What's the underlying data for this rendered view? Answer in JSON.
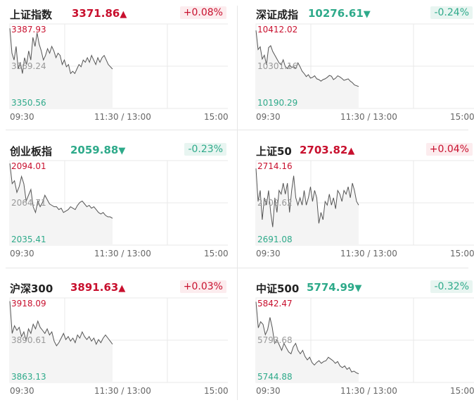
{
  "colors": {
    "up": "#c8102e",
    "down": "#2eaa8a",
    "line": "#555555",
    "grid": "#e8e8e8",
    "fill": "#f4f4f4"
  },
  "chart_data": [
    {
      "type": "line",
      "name": "上证指数",
      "price": "3371.86",
      "arrow": "▲",
      "change": "+0.08%",
      "dir": "up",
      "y_top": "3387.93",
      "y_mid": "3369.24",
      "y_bot": "3350.56",
      "ylim": [
        3350.56,
        3387.93
      ],
      "x_ticks": [
        "09:30",
        "11:30 / 13:00",
        "15:00"
      ],
      "values": [
        3386,
        3375,
        3372,
        3378,
        3368,
        3371,
        3366,
        3373,
        3370,
        3376,
        3372,
        3382,
        3378,
        3384,
        3379,
        3376,
        3372,
        3374,
        3377,
        3375,
        3378,
        3376,
        3373,
        3375,
        3374,
        3370,
        3372,
        3369,
        3370,
        3366,
        3367,
        3366,
        3368,
        3370,
        3369,
        3372,
        3371,
        3373,
        3371,
        3374,
        3372,
        3370,
        3373,
        3371,
        3373,
        3374,
        3372,
        3370,
        3369,
        3368
      ]
    },
    {
      "type": "line",
      "name": "深证成指",
      "price": "10276.61",
      "arrow": "▼",
      "change": "-0.24%",
      "dir": "down",
      "y_top": "10412.02",
      "y_mid": "10301.16",
      "y_bot": "10190.29",
      "ylim": [
        10190.29,
        10412.02
      ],
      "x_ticks": [
        "09:30",
        "11:30 / 13:00",
        "15:00"
      ],
      "values": [
        10395,
        10345,
        10352,
        10320,
        10330,
        10305,
        10350,
        10355,
        10340,
        10330,
        10320,
        10310,
        10305,
        10318,
        10300,
        10295,
        10305,
        10298,
        10300,
        10295,
        10310,
        10300,
        10288,
        10282,
        10274,
        10279,
        10270,
        10272,
        10276,
        10268,
        10266,
        10262,
        10266,
        10268,
        10272,
        10277,
        10275,
        10266,
        10270,
        10276,
        10273,
        10269,
        10264,
        10266,
        10268,
        10262,
        10258,
        10252,
        10250,
        10248
      ]
    },
    {
      "type": "line",
      "name": "创业板指",
      "price": "2059.88",
      "arrow": "▼",
      "change": "-0.23%",
      "dir": "down",
      "y_top": "2094.01",
      "y_mid": "2064.71",
      "y_bot": "2035.41",
      "ylim": [
        2035.41,
        2094.01
      ],
      "x_ticks": [
        "09:30",
        "11:30 / 13:00",
        "15:00"
      ],
      "values": [
        2092,
        2078,
        2080,
        2072,
        2076,
        2083,
        2078,
        2066,
        2070,
        2074,
        2062,
        2058,
        2066,
        2062,
        2065,
        2070,
        2067,
        2064,
        2063,
        2062,
        2062,
        2060,
        2061,
        2058,
        2059,
        2060,
        2062,
        2061,
        2060,
        2063,
        2065,
        2066,
        2064,
        2062,
        2063,
        2061,
        2062,
        2060,
        2058,
        2057,
        2058,
        2056,
        2055,
        2055,
        2054
      ]
    },
    {
      "type": "line",
      "name": "上证50",
      "price": "2703.82",
      "arrow": "▲",
      "change": "+0.04%",
      "dir": "up",
      "y_top": "2714.16",
      "y_mid": "2702.62",
      "y_bot": "2691.08",
      "ylim": [
        2691.08,
        2714.16
      ],
      "x_ticks": [
        "09:30",
        "11:30 / 13:00",
        "15:00"
      ],
      "values": [
        2712,
        2703,
        2706,
        2698,
        2704,
        2702,
        2706,
        2700,
        2696,
        2704,
        2700,
        2706,
        2705,
        2708,
        2705,
        2708,
        2700,
        2706,
        2710,
        2704,
        2702,
        2704,
        2702,
        2706,
        2702,
        2704,
        2707,
        2703,
        2706,
        2704,
        2697,
        2700,
        2698,
        2703,
        2702,
        2705,
        2702,
        2704,
        2701,
        2706,
        2705,
        2703,
        2706,
        2705,
        2707,
        2704,
        2708,
        2706,
        2703,
        2702
      ]
    },
    {
      "type": "line",
      "name": "沪深300",
      "price": "3891.63",
      "arrow": "▲",
      "change": "+0.03%",
      "dir": "up",
      "y_top": "3918.09",
      "y_mid": "3890.61",
      "y_bot": "3863.13",
      "ylim": [
        3863.13,
        3918.09
      ],
      "x_ticks": [
        "09:30",
        "11:30 / 13:00",
        "15:00"
      ],
      "values": [
        3916,
        3895,
        3900,
        3897,
        3899,
        3893,
        3896,
        3890,
        3898,
        3895,
        3901,
        3898,
        3903,
        3899,
        3897,
        3895,
        3898,
        3894,
        3896,
        3890,
        3887,
        3889,
        3892,
        3895,
        3891,
        3893,
        3890,
        3892,
        3889,
        3894,
        3892,
        3896,
        3893,
        3891,
        3893,
        3890,
        3892,
        3888,
        3891,
        3889,
        3892,
        3894,
        3892,
        3890,
        3888
      ]
    },
    {
      "type": "line",
      "name": "中证500",
      "price": "5774.99",
      "arrow": "▼",
      "change": "-0.32%",
      "dir": "down",
      "y_top": "5842.47",
      "y_mid": "5793.68",
      "y_bot": "5744.88",
      "ylim": [
        5744.88,
        5842.47
      ],
      "x_ticks": [
        "09:30",
        "11:30 / 13:00",
        "15:00"
      ],
      "values": [
        5838,
        5808,
        5815,
        5812,
        5800,
        5806,
        5820,
        5808,
        5790,
        5794,
        5788,
        5782,
        5790,
        5785,
        5780,
        5778,
        5786,
        5790,
        5782,
        5778,
        5782,
        5775,
        5771,
        5774,
        5768,
        5765,
        5768,
        5770,
        5767,
        5769,
        5770,
        5774,
        5772,
        5770,
        5767,
        5769,
        5764,
        5762,
        5764,
        5760,
        5762,
        5757,
        5758,
        5756,
        5755
      ]
    }
  ]
}
